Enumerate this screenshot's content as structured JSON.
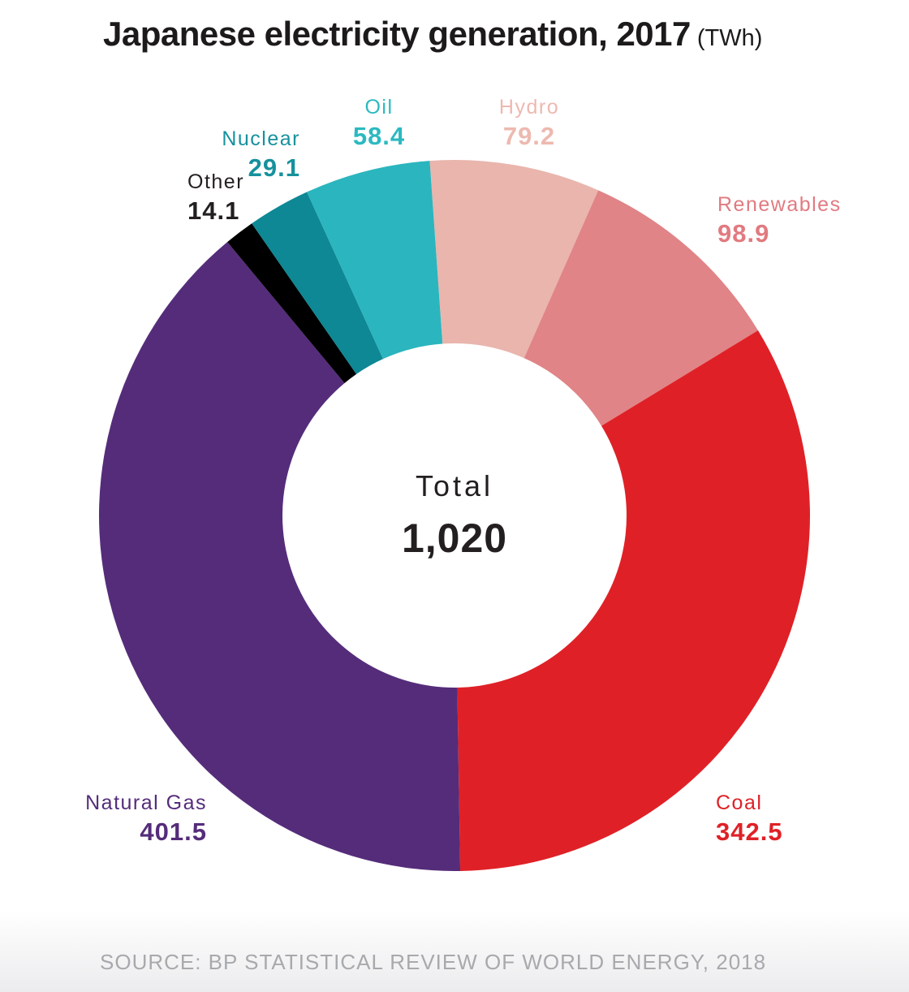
{
  "title": {
    "main": "Japanese electricity generation, 2017",
    "unit": "(TWh)"
  },
  "center": {
    "label": "Total",
    "value": "1,020"
  },
  "source": "SOURCE: BP STATISTICAL REVIEW OF WORLD ENERGY, 2018",
  "chart_data": {
    "type": "pie",
    "subtype": "donut",
    "title": "Japanese electricity generation, 2017 (TWh)",
    "units": "TWh",
    "total_label": "Total",
    "total_value": 1020,
    "start_angle_deg": -4,
    "clockwise": true,
    "legend_position": "labels-around-donut",
    "segments": [
      {
        "name": "Hydro",
        "value": 79.2,
        "color": "#e9b5ad",
        "label_color": "#edb9b0"
      },
      {
        "name": "Renewables",
        "value": 98.9,
        "color": "#e08487",
        "label_color": "#e17a80"
      },
      {
        "name": "Coal",
        "value": 342.5,
        "color": "#df2127",
        "label_color": "#df2127"
      },
      {
        "name": "Natural Gas",
        "value": 401.5,
        "color": "#552c7a",
        "label_color": "#552c7a"
      },
      {
        "name": "Other",
        "value": 14.1,
        "color": "#000000",
        "label_color": "#231f20"
      },
      {
        "name": "Nuclear",
        "value": 29.1,
        "color": "#0d8894",
        "label_color": "#16919d"
      },
      {
        "name": "Oil",
        "value": 58.4,
        "color": "#2bb5be",
        "label_color": "#2bb9c1"
      }
    ]
  }
}
